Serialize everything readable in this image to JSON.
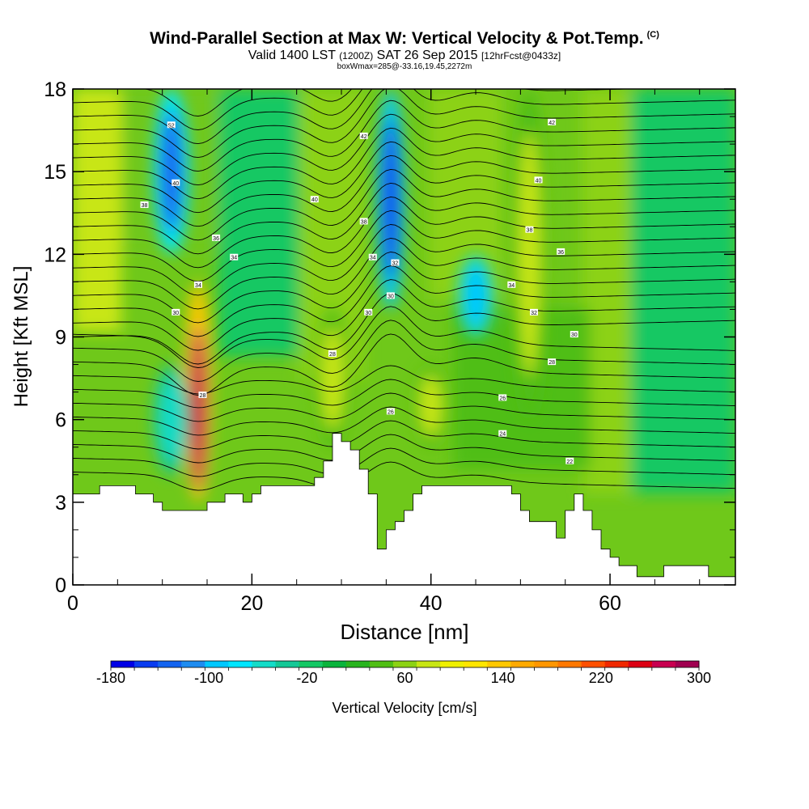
{
  "header": {
    "title": "Wind-Parallel Section at Max W: Vertical Velocity & Pot.Temp.",
    "title_tag": "(C)",
    "subtitle_a": "Valid 1400 LST",
    "subtitle_b": "(1200Z)",
    "subtitle_c": "SAT 26 Sep 2015",
    "subtitle_d": "[12hrFcst@0433z]",
    "info_line": "boxWmax=285@-33.16,19.45,2272m"
  },
  "chart_data": {
    "type": "heatmap",
    "title": "Wind-Parallel Section at Max W: Vertical Velocity & Pot.Temp.",
    "xlabel": "Distance [nm]",
    "ylabel": "Height [Kft MSL]",
    "xlim": [
      0,
      74
    ],
    "ylim": [
      0,
      18
    ],
    "x_ticks": [
      "0",
      "20",
      "40",
      "60"
    ],
    "y_ticks": [
      "0",
      "3",
      "6",
      "9",
      "12",
      "15",
      "18"
    ],
    "colorbar": {
      "label": "Vertical Velocity [cm/s]",
      "range": [
        -180,
        300
      ],
      "step": 20,
      "tick_labels": [
        "-180",
        "-100",
        "-20",
        "60",
        "140",
        "220",
        "300"
      ],
      "colors": [
        "#0000e6",
        "#0a3cf0",
        "#1464f0",
        "#1e8cf0",
        "#00c8ff",
        "#00e6ff",
        "#14dcc8",
        "#14c896",
        "#14c864",
        "#0ab43c",
        "#28b41e",
        "#50be14",
        "#8cd214",
        "#c8e614",
        "#f0f000",
        "#ffe600",
        "#ffc800",
        "#ffaa00",
        "#ff9600",
        "#ff7800",
        "#ff5000",
        "#f02800",
        "#dc0014",
        "#c80050",
        "#a00050"
      ]
    },
    "velocity_features": [
      {
        "x": 14,
        "z_bottom": 3,
        "z_top": 11,
        "value": 285
      },
      {
        "x": 29,
        "z_bottom": 5,
        "z_top": 10,
        "value": 80
      },
      {
        "x": 40,
        "z_bottom": 5,
        "z_top": 8,
        "value": 80
      },
      {
        "x": 51,
        "z_bottom": 6,
        "z_top": 18,
        "value": 80
      },
      {
        "x": 11,
        "z_bottom": 12,
        "z_top": 18,
        "value": -140
      },
      {
        "x": 35.5,
        "z_bottom": 10,
        "z_top": 18,
        "value": -160
      },
      {
        "x": 45,
        "z_bottom": 9,
        "z_top": 12,
        "value": -100
      },
      {
        "x": 11,
        "z_bottom": 4,
        "z_top": 8,
        "value": -60
      }
    ],
    "isentrope_labels": [
      {
        "text": "52",
        "x": 11,
        "z": 16.7
      },
      {
        "text": "40",
        "x": 11.5,
        "z": 14.6
      },
      {
        "text": "38",
        "x": 8,
        "z": 13.8
      },
      {
        "text": "36",
        "x": 16,
        "z": 12.6
      },
      {
        "text": "34",
        "x": 18,
        "z": 11.9
      },
      {
        "text": "34",
        "x": 14,
        "z": 10.9
      },
      {
        "text": "30",
        "x": 11.5,
        "z": 9.9
      },
      {
        "text": "28",
        "x": 14.5,
        "z": 6.9
      },
      {
        "text": "40",
        "x": 27,
        "z": 14.0
      },
      {
        "text": "28",
        "x": 29,
        "z": 8.4
      },
      {
        "text": "42",
        "x": 32.5,
        "z": 16.3
      },
      {
        "text": "38",
        "x": 32.5,
        "z": 13.2
      },
      {
        "text": "34",
        "x": 33.5,
        "z": 11.9
      },
      {
        "text": "32",
        "x": 36,
        "z": 11.7
      },
      {
        "text": "30",
        "x": 35.5,
        "z": 10.5
      },
      {
        "text": "30",
        "x": 33,
        "z": 9.9
      },
      {
        "text": "26",
        "x": 35.5,
        "z": 6.3
      },
      {
        "text": "42",
        "x": 53.5,
        "z": 16.8
      },
      {
        "text": "40",
        "x": 52,
        "z": 14.7
      },
      {
        "text": "38",
        "x": 51,
        "z": 12.9
      },
      {
        "text": "36",
        "x": 54.5,
        "z": 12.1
      },
      {
        "text": "34",
        "x": 49,
        "z": 10.9
      },
      {
        "text": "32",
        "x": 51.5,
        "z": 9.9
      },
      {
        "text": "30",
        "x": 56,
        "z": 9.1
      },
      {
        "text": "28",
        "x": 53.5,
        "z": 8.1
      },
      {
        "text": "26",
        "x": 48,
        "z": 6.8
      },
      {
        "text": "24",
        "x": 48,
        "z": 5.5
      },
      {
        "text": "22",
        "x": 55.5,
        "z": 4.5
      }
    ],
    "terrain": [
      [
        0,
        3.3
      ],
      [
        3,
        3.3
      ],
      [
        3,
        3.6
      ],
      [
        7,
        3.6
      ],
      [
        7,
        3.3
      ],
      [
        9,
        3.3
      ],
      [
        9,
        3.0
      ],
      [
        10,
        3.0
      ],
      [
        10,
        2.7
      ],
      [
        15,
        2.7
      ],
      [
        15,
        3.0
      ],
      [
        17,
        3.0
      ],
      [
        17,
        3.3
      ],
      [
        19,
        3.3
      ],
      [
        19,
        3.0
      ],
      [
        20,
        3.0
      ],
      [
        20,
        3.3
      ],
      [
        21,
        3.3
      ],
      [
        21,
        3.6
      ],
      [
        26,
        3.6
      ],
      [
        26,
        3.6
      ],
      [
        27,
        3.6
      ],
      [
        27,
        3.9
      ],
      [
        28,
        3.9
      ],
      [
        28,
        4.5
      ],
      [
        29,
        4.5
      ],
      [
        29,
        5.5
      ],
      [
        30,
        5.5
      ],
      [
        30,
        5.2
      ],
      [
        31,
        5.2
      ],
      [
        31,
        4.9
      ],
      [
        32,
        4.9
      ],
      [
        32,
        4.2
      ],
      [
        33,
        4.2
      ],
      [
        33,
        3.3
      ],
      [
        34,
        3.3
      ],
      [
        34,
        1.3
      ],
      [
        35,
        1.3
      ],
      [
        35,
        2.0
      ],
      [
        36,
        2.0
      ],
      [
        36,
        2.3
      ],
      [
        37,
        2.3
      ],
      [
        37,
        2.7
      ],
      [
        38,
        2.7
      ],
      [
        38,
        3.3
      ],
      [
        39,
        3.3
      ],
      [
        39,
        3.6
      ],
      [
        49,
        3.6
      ],
      [
        49,
        3.3
      ],
      [
        50,
        3.3
      ],
      [
        50,
        2.7
      ],
      [
        51,
        2.7
      ],
      [
        51,
        2.3
      ],
      [
        54,
        2.3
      ],
      [
        54,
        1.7
      ],
      [
        55,
        1.7
      ],
      [
        55,
        2.7
      ],
      [
        56,
        2.7
      ],
      [
        56,
        3.3
      ],
      [
        57,
        3.3
      ],
      [
        57,
        2.7
      ],
      [
        58,
        2.7
      ],
      [
        58,
        2.0
      ],
      [
        59,
        2.0
      ],
      [
        59,
        1.3
      ],
      [
        60,
        1.3
      ],
      [
        60,
        1.0
      ],
      [
        61,
        1.0
      ],
      [
        61,
        0.7
      ],
      [
        63,
        0.7
      ],
      [
        63,
        0.3
      ],
      [
        66,
        0.3
      ],
      [
        66,
        0.7
      ],
      [
        71,
        0.7
      ],
      [
        71,
        0.3
      ],
      [
        74,
        0.3
      ]
    ]
  }
}
